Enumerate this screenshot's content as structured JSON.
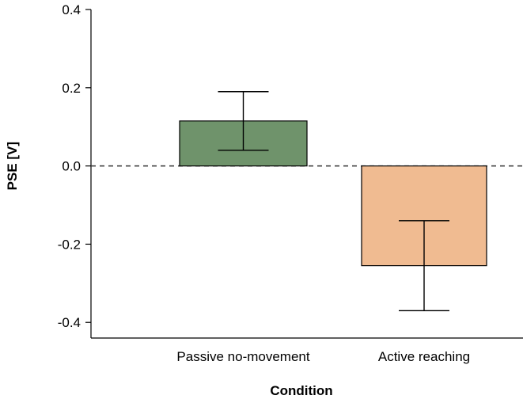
{
  "chart_data": {
    "type": "bar",
    "title": "",
    "xlabel": "Condition",
    "ylabel": "PSE [V]",
    "ylim": [
      -0.44,
      0.4
    ],
    "yticks": [
      0.4,
      0.2,
      0.0,
      -0.2,
      -0.4
    ],
    "ytick_labels": [
      "0.4",
      "0.2",
      "0.0",
      "-0.2",
      "-0.4"
    ],
    "categories": [
      "Passive no-movement",
      "Active reaching"
    ],
    "values": [
      0.115,
      -0.255
    ],
    "error_low": [
      0.04,
      -0.37
    ],
    "error_high": [
      0.19,
      -0.14
    ],
    "colors": [
      "#6f936b",
      "#f0bb91"
    ],
    "reference_line": 0.0
  }
}
